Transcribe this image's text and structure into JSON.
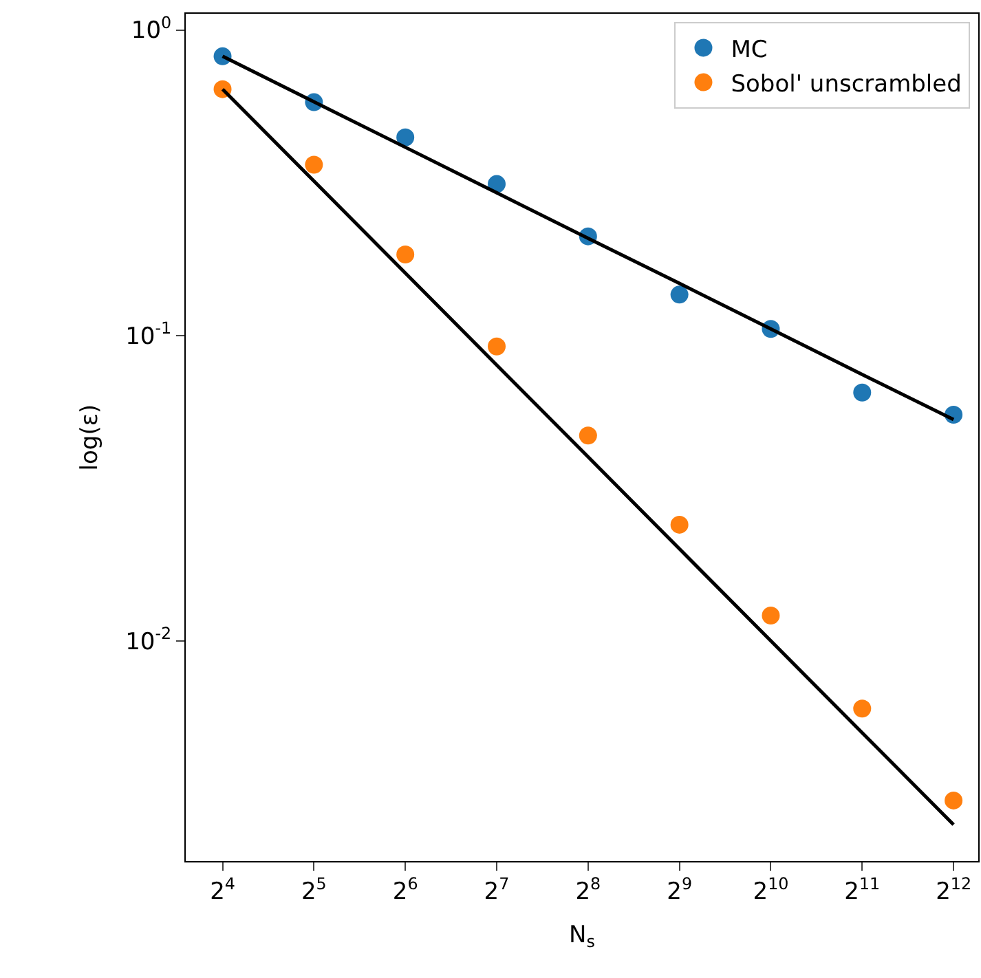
{
  "chart_data": {
    "type": "scatter",
    "xlabel": "N$_{s}$",
    "ylabel": "log(ε)",
    "log": "xy",
    "legend": "top right",
    "marker": "circle",
    "x": [
      16,
      32,
      64,
      128,
      256,
      512,
      1024,
      2048,
      4096
    ],
    "series": [
      {
        "name": "MC",
        "color": "#1f77b4",
        "values": [
          0.82,
          0.58,
          0.445,
          0.313,
          0.211,
          0.136,
          0.105,
          0.065,
          0.055
        ]
      },
      {
        "name": "Sobol' unscrambled",
        "color": "#ff7f0e",
        "values": [
          0.64,
          0.362,
          0.184,
          0.092,
          0.047,
          0.024,
          0.0121,
          0.006,
          0.003
        ]
      },
      {
        "type": "line",
        "color": "#000000",
        "marker": "none",
        "values": [
          0.82,
          0.582,
          0.413,
          0.293,
          0.208,
          0.148,
          0.105,
          0.0745,
          0.053
        ],
        "line_style": "solid"
      },
      {
        "type": "line",
        "color": "#000000",
        "marker": "none",
        "values": [
          0.64,
          0.32,
          0.16,
          0.08,
          0.04,
          0.02,
          0.01,
          0.005,
          0.0025
        ],
        "line_style": "solid"
      }
    ],
    "xlim": [
      12.1,
      4940
    ],
    "ylim": [
      0.0019,
      1.13
    ],
    "xticks": [
      {
        "value": 16,
        "label": "2$^{4}$"
      },
      {
        "value": 32,
        "label": "2$^{5}$"
      },
      {
        "value": 64,
        "label": "2$^{6}$"
      },
      {
        "value": 128,
        "label": "2$^{7}$"
      },
      {
        "value": 256,
        "label": "2$^{8}$"
      },
      {
        "value": 512,
        "label": "2$^{9}$"
      },
      {
        "value": 1024,
        "label": "2$^{10}$"
      },
      {
        "value": 2048,
        "label": "2$^{11}$"
      },
      {
        "value": 4096,
        "label": "2$^{12}$"
      }
    ],
    "yticks": [
      {
        "value": 0.01,
        "label": "10$^{-2}$"
      },
      {
        "value": 0.1,
        "label": "10$^{-1}$"
      },
      {
        "value": 1,
        "label": "10$^{0}$"
      }
    ]
  }
}
